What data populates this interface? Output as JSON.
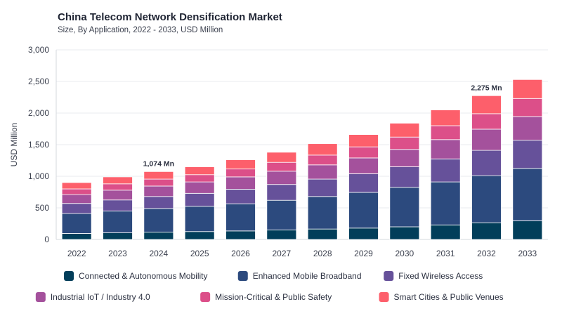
{
  "chart_data": {
    "type": "bar",
    "stacked": true,
    "title": "China Telecom Network Densification Market",
    "subtitle": "Size, By Application, 2022 - 2033, USD Million",
    "xlabel": "",
    "ylabel": "USD Million",
    "ylim": [
      0,
      3000
    ],
    "yticks": [
      0,
      500,
      1000,
      1500,
      2000,
      2500,
      3000
    ],
    "ytick_labels": [
      "0",
      "500",
      "1,000",
      "1,500",
      "2,000",
      "2,500",
      "3,000"
    ],
    "grid": true,
    "legend_position": "bottom",
    "categories": [
      "2022",
      "2023",
      "2024",
      "2025",
      "2026",
      "2027",
      "2028",
      "2029",
      "2030",
      "2031",
      "2032",
      "2033"
    ],
    "series": [
      {
        "name": "Connected & Autonomous Mobility",
        "color": "#023e5a",
        "values": [
          95,
          105,
          115,
          125,
          135,
          150,
          165,
          180,
          200,
          230,
          265,
          295
        ]
      },
      {
        "name": "Enhanced Mobile Broadband",
        "color": "#2c4a7e",
        "values": [
          315,
          345,
          375,
          400,
          430,
          470,
          515,
          565,
          625,
          680,
          745,
          830
        ]
      },
      {
        "name": "Fixed Wireless Access",
        "color": "#66519a",
        "values": [
          160,
          175,
          190,
          205,
          230,
          250,
          275,
          295,
          325,
          365,
          400,
          445
        ]
      },
      {
        "name": "Industrial IoT / Industry 4.0",
        "color": "#a4519c",
        "values": [
          140,
          155,
          165,
          180,
          195,
          210,
          225,
          250,
          275,
          305,
          335,
          375
        ]
      },
      {
        "name": "Mission-Critical & Public Safety",
        "color": "#dc4f89",
        "values": [
          90,
          100,
          110,
          115,
          125,
          140,
          155,
          175,
          195,
          220,
          245,
          285
        ]
      },
      {
        "name": "Smart Cities & Public Venues",
        "color": "#fd5f6b",
        "values": [
          100,
          110,
          119,
          125,
          145,
          160,
          180,
          195,
          220,
          250,
          285,
          300
        ]
      }
    ],
    "annotations": [
      {
        "category": "2024",
        "text": "1,074 Mn"
      },
      {
        "category": "2032",
        "text": "2,275 Mn"
      }
    ]
  }
}
